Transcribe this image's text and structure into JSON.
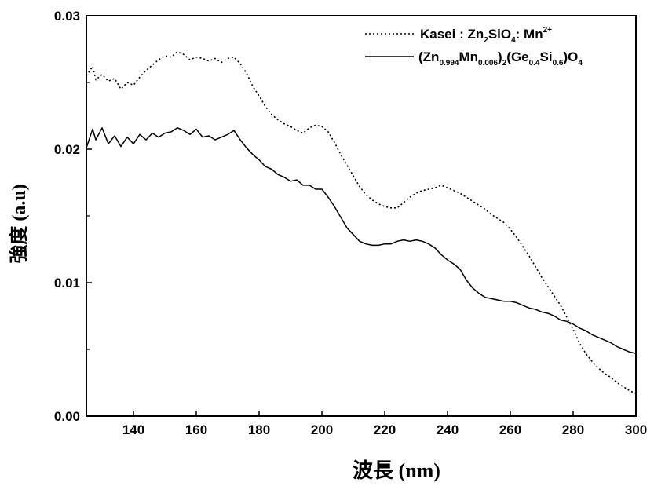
{
  "chart_data": {
    "type": "line",
    "xlabel": "波長 (nm)",
    "ylabel": "強度 (a.u)",
    "xlim": [
      125,
      300
    ],
    "ylim": [
      0,
      0.03
    ],
    "x_ticks": [
      "140",
      "160",
      "180",
      "200",
      "220",
      "240",
      "260",
      "280",
      "300"
    ],
    "y_ticks": [
      "0.00",
      "0.01",
      "0.02",
      "0.03"
    ],
    "grid": false,
    "legend_position": "top-right",
    "series": [
      {
        "name": "Kasei : Zn2SiO4: Mn2+",
        "legend": {
          "pre": "Kasei : Zn",
          "s1": "2",
          "mid": "SiO",
          "s2": "4",
          "post": ": Mn",
          "sup": "2+"
        },
        "style": "dotted",
        "x": [
          125,
          127,
          128,
          130,
          132,
          134,
          136,
          138,
          140,
          142,
          144,
          146,
          148,
          150,
          152,
          154,
          156,
          158,
          160,
          162,
          164,
          166,
          168,
          170,
          172,
          174,
          176,
          178,
          180,
          182,
          184,
          186,
          188,
          190,
          192,
          194,
          196,
          198,
          200,
          202,
          204,
          206,
          208,
          210,
          212,
          214,
          216,
          218,
          220,
          222,
          224,
          226,
          228,
          230,
          232,
          234,
          236,
          238,
          240,
          242,
          244,
          246,
          248,
          250,
          252,
          254,
          256,
          258,
          260,
          262,
          264,
          266,
          268,
          270,
          272,
          274,
          276,
          278,
          280,
          282,
          284,
          286,
          288,
          290,
          292,
          294,
          296,
          298,
          300
        ],
        "y": [
          0.0255,
          0.0262,
          0.0252,
          0.0256,
          0.0251,
          0.0253,
          0.0245,
          0.025,
          0.0248,
          0.0254,
          0.0259,
          0.0263,
          0.0267,
          0.027,
          0.0269,
          0.0273,
          0.0271,
          0.0267,
          0.0269,
          0.0268,
          0.0266,
          0.0268,
          0.0265,
          0.0268,
          0.0269,
          0.0264,
          0.0257,
          0.0247,
          0.024,
          0.0232,
          0.0226,
          0.0222,
          0.0219,
          0.0217,
          0.0214,
          0.0212,
          0.0216,
          0.0218,
          0.0217,
          0.0213,
          0.0205,
          0.0196,
          0.0188,
          0.018,
          0.0172,
          0.0166,
          0.0162,
          0.0159,
          0.0157,
          0.0156,
          0.0156,
          0.016,
          0.0164,
          0.0167,
          0.0169,
          0.017,
          0.0171,
          0.0173,
          0.0171,
          0.0169,
          0.0167,
          0.0164,
          0.0161,
          0.0158,
          0.0155,
          0.0151,
          0.0148,
          0.0145,
          0.014,
          0.0134,
          0.0127,
          0.012,
          0.0112,
          0.0104,
          0.0097,
          0.009,
          0.0083,
          0.0074,
          0.0065,
          0.0055,
          0.0047,
          0.0041,
          0.0036,
          0.0032,
          0.0029,
          0.0025,
          0.0022,
          0.0019,
          0.0017
        ]
      },
      {
        "name": "(Zn0.994Mn0.006)2(Ge0.4Si0.6)O4",
        "legend": {
          "a": "(Zn",
          "b": "0.994",
          "c": "Mn",
          "d": "0.006",
          "e": ")",
          "f": "2",
          "g": "(Ge",
          "h": "0.4",
          "i": "Si",
          "j": "0.6",
          "k": ")O",
          "l": "4"
        },
        "style": "solid",
        "x": [
          125,
          127,
          128,
          130,
          132,
          134,
          136,
          138,
          140,
          142,
          144,
          146,
          148,
          150,
          152,
          154,
          156,
          158,
          160,
          162,
          164,
          166,
          168,
          170,
          172,
          174,
          176,
          178,
          180,
          182,
          184,
          186,
          188,
          190,
          192,
          194,
          196,
          198,
          200,
          202,
          204,
          206,
          208,
          210,
          212,
          214,
          216,
          218,
          220,
          222,
          224,
          226,
          228,
          230,
          232,
          234,
          236,
          238,
          240,
          242,
          244,
          246,
          248,
          250,
          252,
          254,
          256,
          258,
          260,
          262,
          264,
          266,
          268,
          270,
          272,
          274,
          276,
          278,
          280,
          282,
          284,
          286,
          288,
          290,
          292,
          294,
          296,
          298,
          300
        ],
        "y": [
          0.0201,
          0.0215,
          0.0207,
          0.0216,
          0.0204,
          0.021,
          0.0202,
          0.0209,
          0.0204,
          0.0211,
          0.0207,
          0.0212,
          0.0209,
          0.0212,
          0.0213,
          0.0216,
          0.0214,
          0.0211,
          0.0215,
          0.0209,
          0.021,
          0.0207,
          0.0209,
          0.0211,
          0.0214,
          0.0207,
          0.0201,
          0.0196,
          0.0192,
          0.0187,
          0.0185,
          0.0181,
          0.0179,
          0.0176,
          0.0177,
          0.0173,
          0.0173,
          0.017,
          0.017,
          0.0164,
          0.0157,
          0.0149,
          0.0141,
          0.0136,
          0.0131,
          0.0129,
          0.0128,
          0.0128,
          0.0129,
          0.0129,
          0.0131,
          0.0132,
          0.0131,
          0.0132,
          0.0131,
          0.0129,
          0.0126,
          0.0121,
          0.0117,
          0.0114,
          0.011,
          0.0102,
          0.0096,
          0.0092,
          0.0089,
          0.0088,
          0.0087,
          0.0086,
          0.0086,
          0.0085,
          0.0083,
          0.0081,
          0.008,
          0.0078,
          0.0077,
          0.0075,
          0.0072,
          0.0071,
          0.0069,
          0.0066,
          0.0064,
          0.0061,
          0.0059,
          0.0057,
          0.0055,
          0.0052,
          0.005,
          0.0048,
          0.0047
        ]
      }
    ]
  }
}
